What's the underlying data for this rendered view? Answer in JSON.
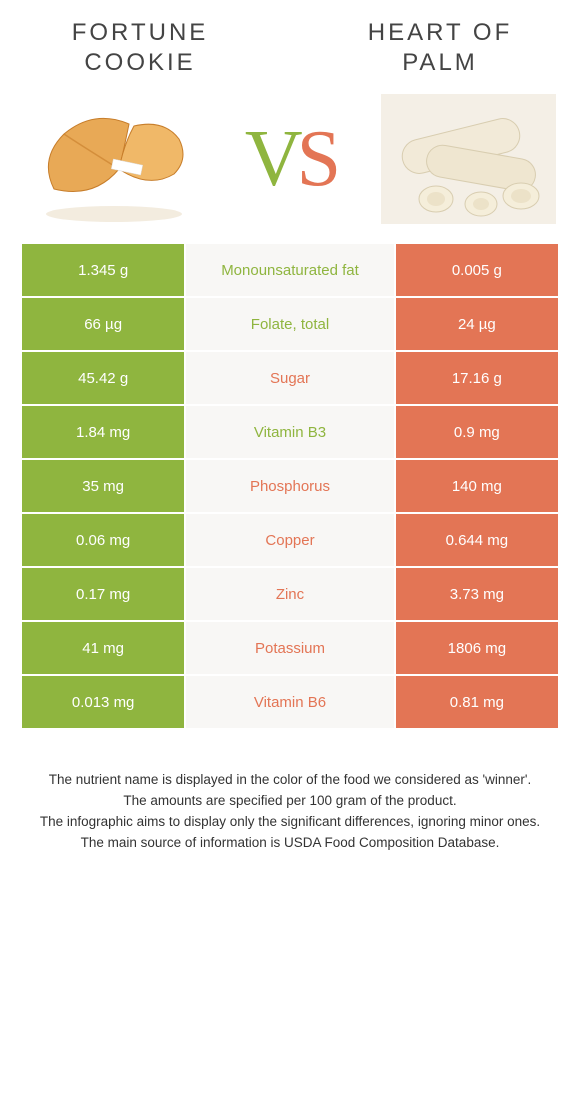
{
  "colors": {
    "left": "#8fb53f",
    "right": "#e37555",
    "mid_bg": "#f8f7f5"
  },
  "left_food": {
    "title": "FORTUNE COOKIE"
  },
  "right_food": {
    "title": "HEART OF PALM"
  },
  "vs": {
    "v": "V",
    "s": "S"
  },
  "rows": [
    {
      "left": "1.345 g",
      "name": "Monounsaturated fat",
      "right": "0.005 g",
      "winner": "left"
    },
    {
      "left": "66 µg",
      "name": "Folate, total",
      "right": "24 µg",
      "winner": "left"
    },
    {
      "left": "45.42 g",
      "name": "Sugar",
      "right": "17.16 g",
      "winner": "right"
    },
    {
      "left": "1.84 mg",
      "name": "Vitamin B3",
      "right": "0.9 mg",
      "winner": "left"
    },
    {
      "left": "35 mg",
      "name": "Phosphorus",
      "right": "140 mg",
      "winner": "right"
    },
    {
      "left": "0.06 mg",
      "name": "Copper",
      "right": "0.644 mg",
      "winner": "right"
    },
    {
      "left": "0.17 mg",
      "name": "Zinc",
      "right": "3.73 mg",
      "winner": "right"
    },
    {
      "left": "41 mg",
      "name": "Potassium",
      "right": "1806 mg",
      "winner": "right"
    },
    {
      "left": "0.013 mg",
      "name": "Vitamin B6",
      "right": "0.81 mg",
      "winner": "right"
    }
  ],
  "footnote": {
    "l1": "The nutrient name is displayed in the color of the food we considered as 'winner'.",
    "l2": "The amounts are specified per 100 gram of the product.",
    "l3": "The infographic aims to display only the significant differences, ignoring minor ones.",
    "l4": "The main source of information is USDA Food Composition Database."
  }
}
